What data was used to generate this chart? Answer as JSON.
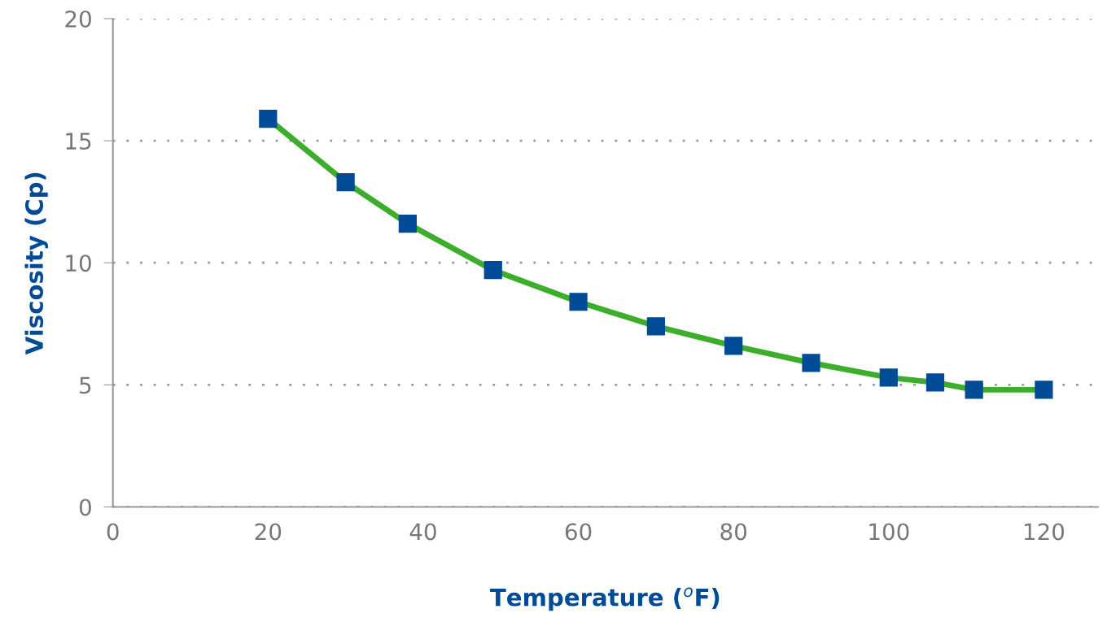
{
  "chart_data": {
    "type": "line",
    "xlabel": "Temperature ($^{o}$F)",
    "ylabel": "Viscosity (Cp)",
    "x": [
      20,
      30,
      38,
      49,
      60,
      70,
      80,
      90,
      100,
      106,
      111,
      120
    ],
    "series": [
      {
        "color": "#3dae2b",
        "colors": [
          "#004b96",
          "#004b96",
          "#004b96",
          "#004b96",
          "#004b96",
          "#004b96",
          "#004b96",
          "#004b96",
          "#004b96",
          "#004b96",
          "#004b96",
          "#004b96"
        ],
        "values": [
          15.9,
          13.3,
          11.6,
          9.7,
          8.4,
          7.4,
          6.6,
          5.9,
          5.3,
          5.1,
          4.8,
          4.8
        ]
      }
    ],
    "xlim": [
      0,
      127
    ],
    "xticks": [
      0,
      20,
      40,
      60,
      80,
      100,
      120
    ],
    "ylim": [
      0,
      20
    ],
    "yticks": [
      0,
      5,
      10,
      15,
      20
    ],
    "grid": "y",
    "marker": "square",
    "line_style": "solid",
    "legend": false
  }
}
